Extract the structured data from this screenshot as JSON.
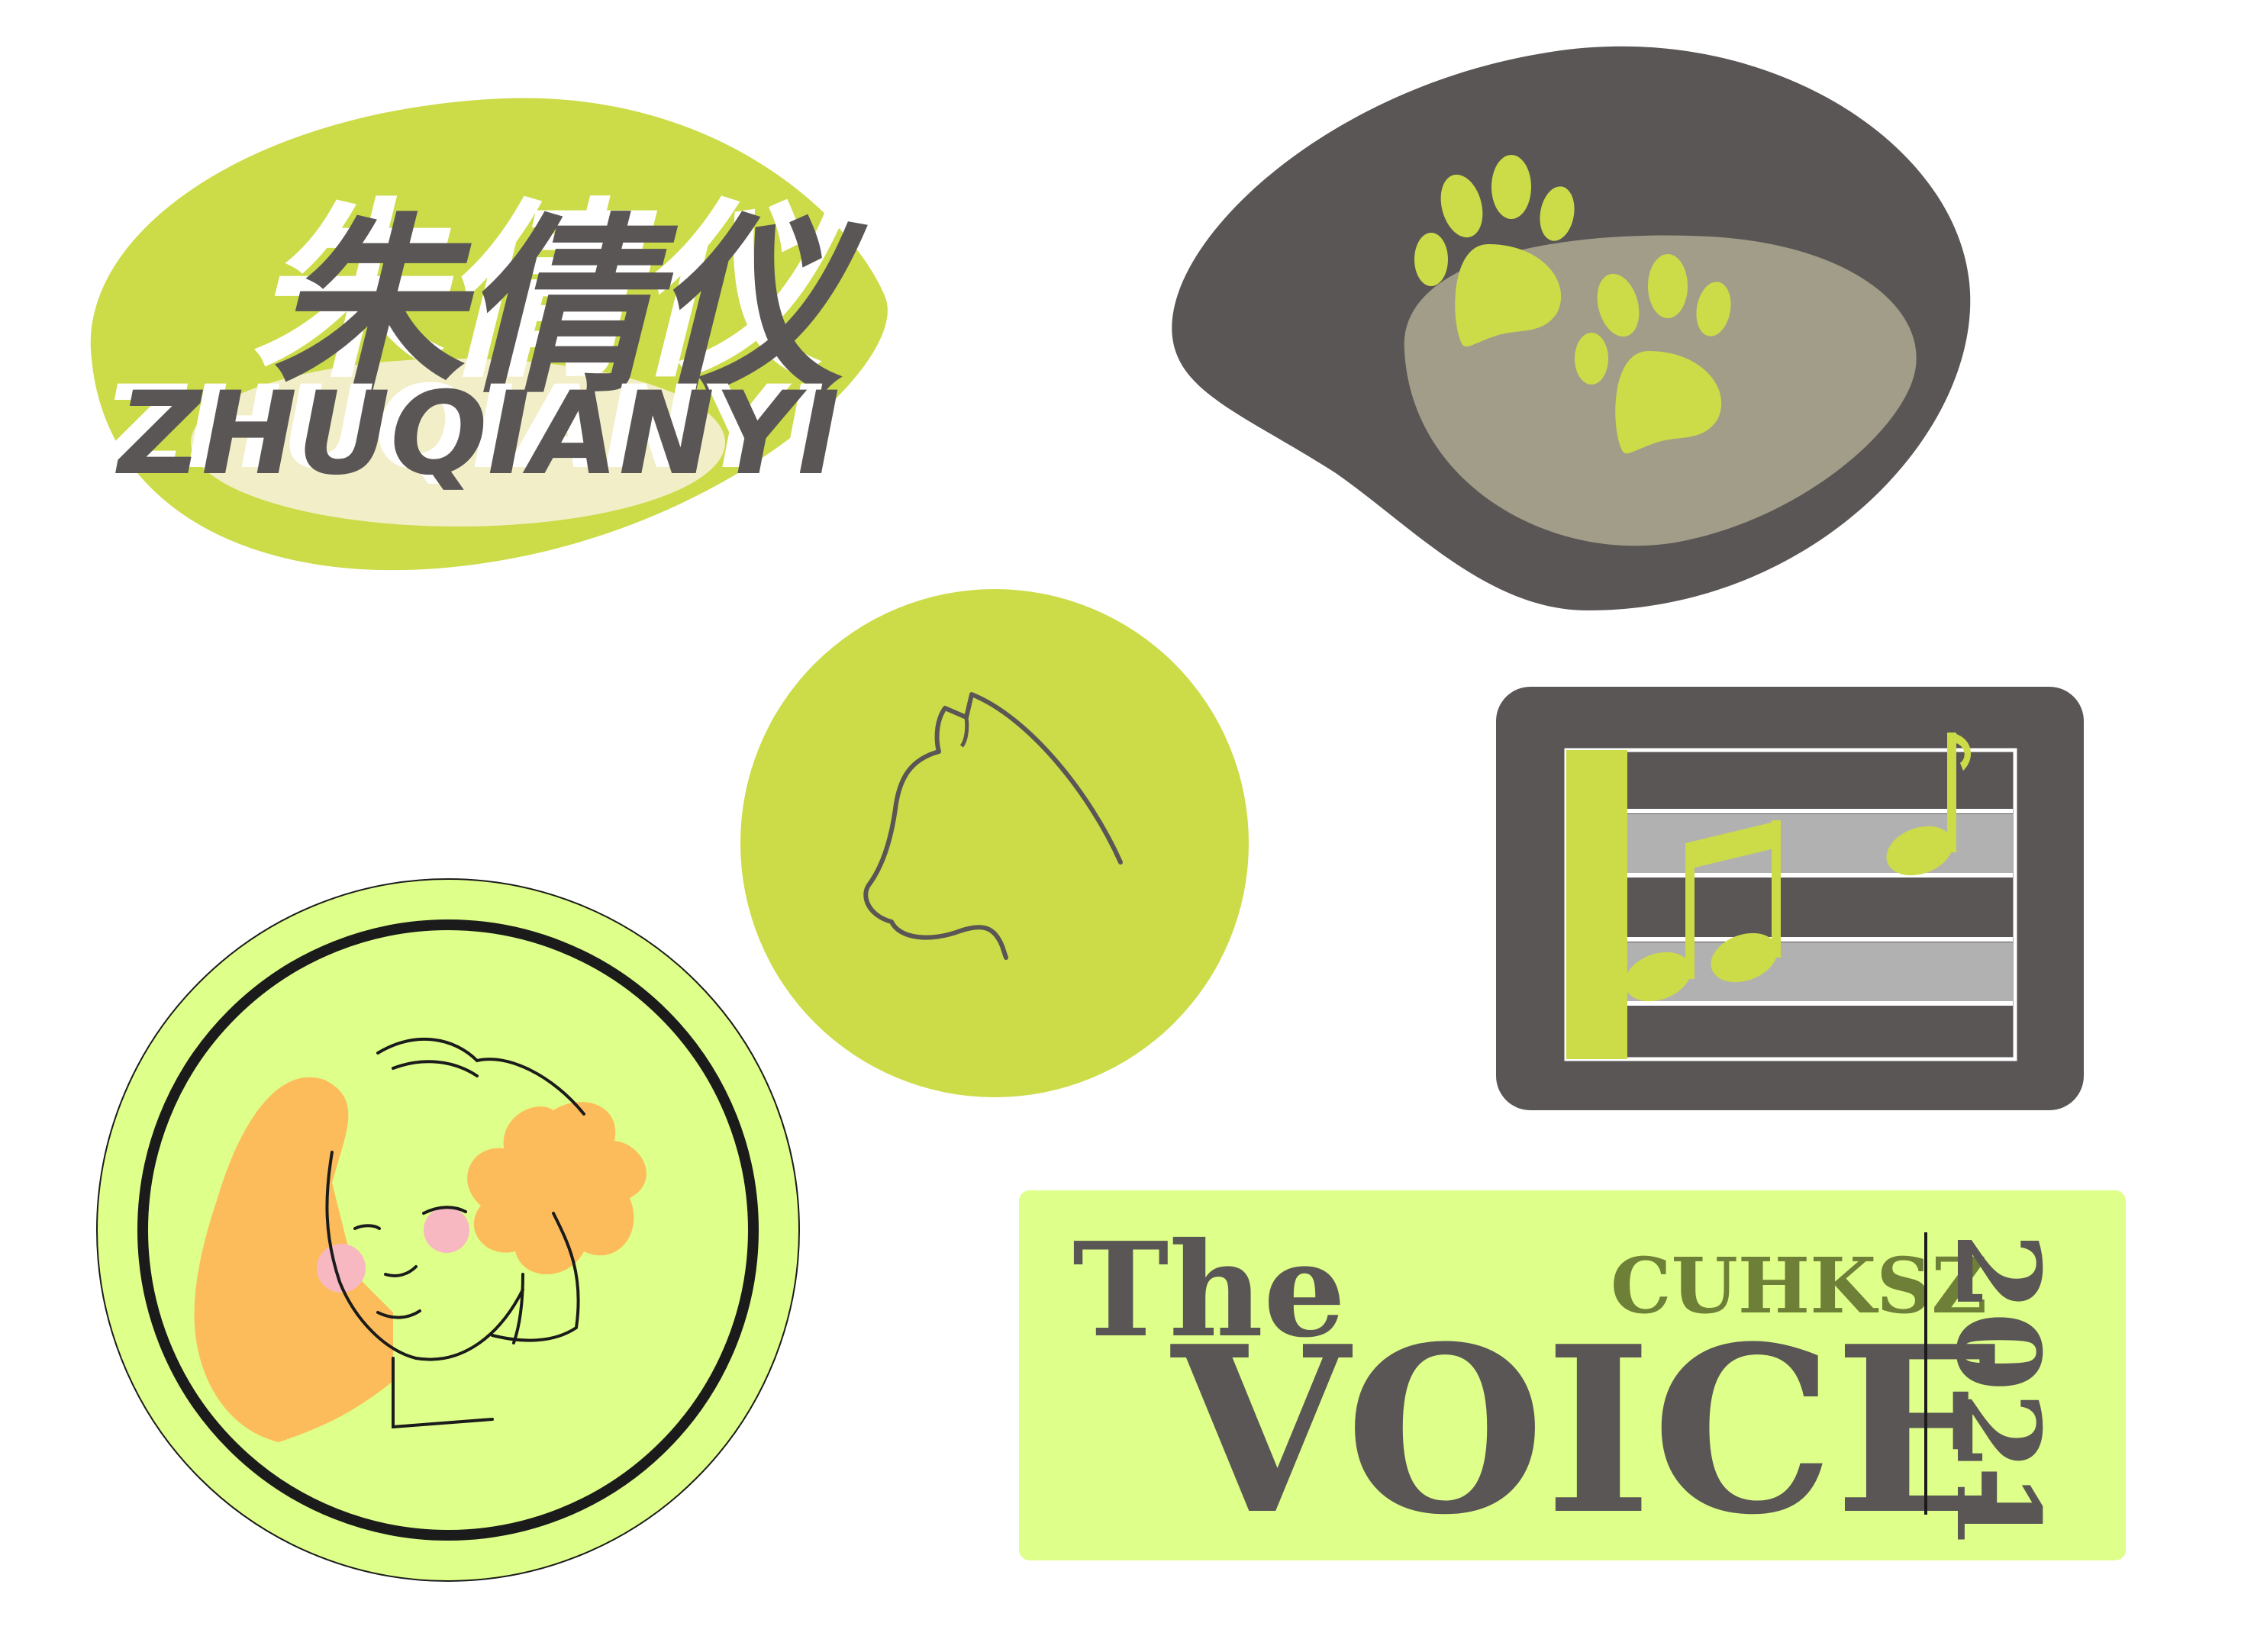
{
  "colors": {
    "lime": "#CCDB48",
    "pale_lime": "#DEFF89",
    "cream": "#F2EFC8",
    "charcoal": "#5A5655",
    "taupe": "#A29D88",
    "grey_stripe": "#B1B1B1",
    "orange": "#FDBC5B",
    "pink": "#F7B8C1",
    "olive": "#6E7F37",
    "ink": "#1B1B1B"
  },
  "name_sticker": {
    "chinese_name": "朱倩仪",
    "latin_name": "ZHUQIANYI"
  },
  "paw_sticker": {
    "icon": "paw-prints-icon"
  },
  "cat_sticker": {
    "icon": "cat-outline-icon"
  },
  "music_sticker": {
    "icon": "music-staff-icon"
  },
  "portrait_sticker": {
    "icon": "girl-portrait-icon"
  },
  "voice_sticker": {
    "the": "The",
    "voice": "VOICE",
    "org": "CUHKSZ",
    "year": "2021"
  }
}
